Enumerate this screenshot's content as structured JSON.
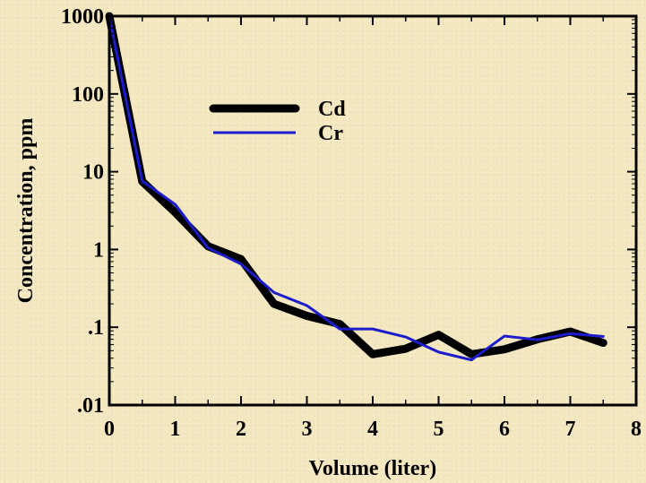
{
  "chart_data": {
    "type": "line",
    "xlabel": "Volume (liter)",
    "ylabel": "Concentration, ppm",
    "xlim": [
      0,
      8
    ],
    "ylim": [
      0.01,
      1000
    ],
    "y_scale": "log",
    "x_ticks": [
      "0",
      "1",
      "2",
      "3",
      "4",
      "5",
      "6",
      "7",
      "8"
    ],
    "y_ticks": [
      {
        "value": 0.01,
        "label": ".01"
      },
      {
        "value": 0.1,
        "label": ".1"
      },
      {
        "value": 1,
        "label": "1"
      },
      {
        "value": 10,
        "label": "10"
      },
      {
        "value": 100,
        "label": "100"
      },
      {
        "value": 1000,
        "label": "1000"
      }
    ],
    "legend_position": "upper-center",
    "series": [
      {
        "name": "Cd",
        "color": "#000000",
        "x": [
          0,
          0.5,
          1.0,
          1.5,
          2.0,
          2.5,
          3.0,
          3.5,
          4.0,
          4.5,
          5.0,
          5.5,
          6.0,
          6.5,
          7.0,
          7.5
        ],
        "y": [
          1000,
          7.5,
          3.0,
          1.1,
          0.75,
          0.2,
          0.14,
          0.11,
          0.045,
          0.053,
          0.08,
          0.045,
          0.052,
          0.07,
          0.088,
          0.063
        ]
      },
      {
        "name": "Cr",
        "color": "#1c1ccc",
        "x": [
          0,
          0.5,
          1.0,
          1.5,
          2.0,
          2.5,
          3.0,
          3.5,
          4.0,
          4.5,
          5.0,
          5.5,
          6.0,
          6.5,
          7.0,
          7.5
        ],
        "y": [
          1000,
          7.6,
          3.8,
          1.05,
          0.65,
          0.28,
          0.19,
          0.095,
          0.095,
          0.075,
          0.048,
          0.038,
          0.077,
          0.069,
          0.083,
          0.076
        ]
      }
    ]
  }
}
